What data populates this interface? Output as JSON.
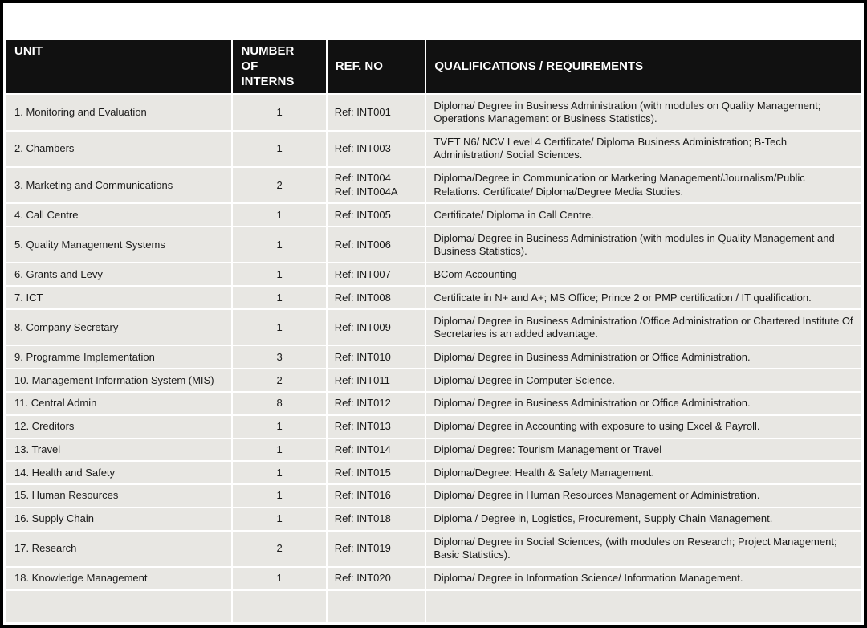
{
  "page": {
    "colors": {
      "frame": "#000000",
      "page_bg": "#ffffff",
      "header_bg": "#111111",
      "header_text": "#ffffff",
      "cell_bg": "#e8e7e3",
      "cell_text": "#1a1a1a",
      "grid": "#ffffff"
    }
  },
  "table": {
    "columns": [
      {
        "label": "UNIT"
      },
      {
        "label": "NUMBER OF INTERNS"
      },
      {
        "label": "REF. NO"
      },
      {
        "label": "QUALIFICATIONS / REQUIREMENTS"
      }
    ],
    "rows": [
      {
        "unit": "1. Monitoring and Evaluation",
        "interns": "1",
        "ref": "Ref: INT001",
        "qualifications": "Diploma/ Degree in Business Administration (with modules on Quality Management; Operations Management or Business Statistics)."
      },
      {
        "unit": "2. Chambers",
        "interns": "1",
        "ref": "Ref: INT003",
        "qualifications": "TVET N6/ NCV Level 4 Certificate/ Diploma Business Administration; B-Tech Administration/ Social Sciences."
      },
      {
        "unit": "3. Marketing and Communications",
        "interns": "2",
        "ref": "Ref: INT004\nRef: INT004A",
        "qualifications": "Diploma/Degree in Communication or Marketing Management/Journalism/Public Relations. Certificate/ Diploma/Degree Media Studies."
      },
      {
        "unit": "4. Call Centre",
        "interns": "1",
        "ref": "Ref: INT005",
        "qualifications": "Certificate/ Diploma in Call Centre."
      },
      {
        "unit": "5. Quality Management Systems",
        "interns": "1",
        "ref": "Ref: INT006",
        "qualifications": "Diploma/ Degree in Business Administration (with modules in Quality Management and Business Statistics)."
      },
      {
        "unit": "6. Grants and Levy",
        "interns": "1",
        "ref": "Ref: INT007",
        "qualifications": "BCom Accounting"
      },
      {
        "unit": "7. ICT",
        "interns": "1",
        "ref": "Ref: INT008",
        "qualifications": "Certificate in N+ and A+; MS Office; Prince 2 or PMP certification / IT qualification."
      },
      {
        "unit": "8. Company Secretary",
        "interns": "1",
        "ref": "Ref: INT009",
        "qualifications": "Diploma/ Degree in Business Administration /Office Administration or Chartered Institute Of Secretaries is an added advantage."
      },
      {
        "unit": "9. Programme Implementation",
        "interns": "3",
        "ref": "Ref: INT010",
        "qualifications": "Diploma/ Degree in Business Administration or Office Administration."
      },
      {
        "unit": "10. Management Information System (MIS)",
        "interns": "2",
        "ref": "Ref: INT011",
        "qualifications": "Diploma/ Degree in Computer Science."
      },
      {
        "unit": "11. Central Admin",
        "interns": "8",
        "ref": "Ref: INT012",
        "qualifications": "Diploma/ Degree in Business Administration or Office Administration."
      },
      {
        "unit": "12. Creditors",
        "interns": "1",
        "ref": "Ref: INT013",
        "qualifications": "Diploma/ Degree in Accounting with exposure to using Excel & Payroll."
      },
      {
        "unit": "13. Travel",
        "interns": "1",
        "ref": "Ref: INT014",
        "qualifications": "Diploma/ Degree: Tourism Management or Travel"
      },
      {
        "unit": "14. Health and Safety",
        "interns": "1",
        "ref": "Ref: INT015",
        "qualifications": "Diploma/Degree: Health & Safety Management."
      },
      {
        "unit": "15. Human Resources",
        "interns": "1",
        "ref": "Ref: INT016",
        "qualifications": "Diploma/ Degree in Human Resources Management or Administration."
      },
      {
        "unit": "16. Supply Chain",
        "interns": "1",
        "ref": "Ref: INT018",
        "qualifications": "Diploma / Degree in, Logistics, Procurement, Supply Chain Management."
      },
      {
        "unit": "17. Research",
        "interns": "2",
        "ref": "Ref: INT019",
        "qualifications": "Diploma/ Degree in Social Sciences, (with modules on Research; Project Management; Basic Statistics)."
      },
      {
        "unit": "18. Knowledge Management",
        "interns": "1",
        "ref": "Ref: INT020",
        "qualifications": "Diploma/ Degree in Information Science/ Information Management."
      },
      {
        "unit": "",
        "interns": "",
        "ref": "",
        "qualifications": ""
      }
    ]
  }
}
